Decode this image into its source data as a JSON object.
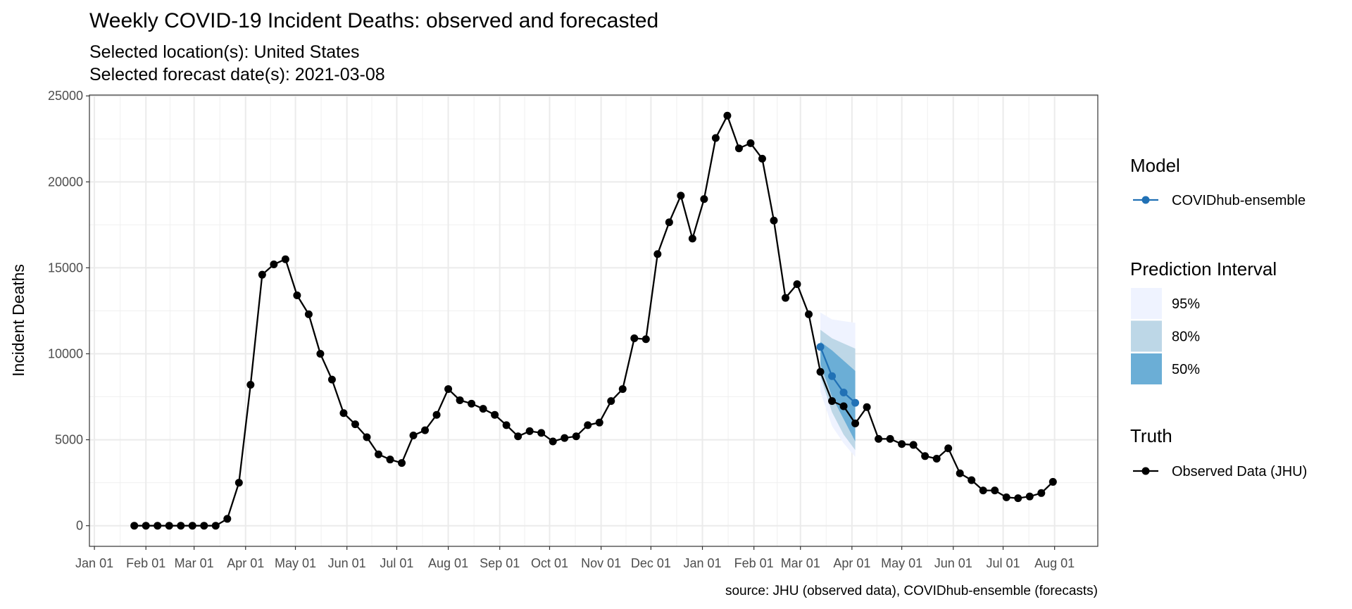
{
  "chart_data": {
    "type": "line",
    "title": "Weekly COVID-19 Incident Deaths: observed and forecasted",
    "subtitle": [
      "Selected location(s): United States",
      "Selected forecast date(s): 2021-03-08"
    ],
    "caption": "source: JHU (observed data), COVIDhub-ensemble (forecasts)",
    "y_label": "Incident Deaths",
    "xlim": [
      -3,
      604
    ],
    "ylim": [
      -1200,
      25050
    ],
    "xticks": [
      {
        "value": 0,
        "label": "Jan 01"
      },
      {
        "value": 31,
        "label": "Feb 01"
      },
      {
        "value": 60,
        "label": "Mar 01"
      },
      {
        "value": 91,
        "label": "Apr 01"
      },
      {
        "value": 121,
        "label": "May 01"
      },
      {
        "value": 152,
        "label": "Jun 01"
      },
      {
        "value": 182,
        "label": "Jul 01"
      },
      {
        "value": 213,
        "label": "Aug 01"
      },
      {
        "value": 244,
        "label": "Sep 01"
      },
      {
        "value": 274,
        "label": "Oct 01"
      },
      {
        "value": 305,
        "label": "Nov 01"
      },
      {
        "value": 335,
        "label": "Dec 01"
      },
      {
        "value": 366,
        "label": "Jan 01"
      },
      {
        "value": 397,
        "label": "Feb 01"
      },
      {
        "value": 425,
        "label": "Mar 01"
      },
      {
        "value": 456,
        "label": "Apr 01"
      },
      {
        "value": 486,
        "label": "May 01"
      },
      {
        "value": 517,
        "label": "Jun 01"
      },
      {
        "value": 547,
        "label": "Jul 01"
      },
      {
        "value": 578,
        "label": "Aug 01"
      }
    ],
    "yticks": [
      0,
      5000,
      10000,
      15000,
      20000,
      25000
    ],
    "grid": true,
    "legend_titles": {
      "model": "Model",
      "interval": "Prediction Interval",
      "truth": "Truth"
    },
    "series": [
      {
        "name": "Observed Data (JHU)",
        "color": "#000000",
        "x": [
          24,
          31,
          38,
          45,
          52,
          59,
          66,
          73,
          80,
          87,
          94,
          101,
          108,
          115,
          122,
          129,
          136,
          143,
          150,
          157,
          164,
          171,
          178,
          185,
          192,
          199,
          206,
          213,
          220,
          227,
          234,
          241,
          248,
          255,
          262,
          269,
          276,
          283,
          290,
          297,
          304,
          311,
          318,
          325,
          332,
          339,
          346,
          353,
          360,
          367,
          374,
          381,
          388,
          395,
          402,
          409,
          416,
          423,
          430,
          437,
          444,
          451,
          458,
          465,
          472,
          479,
          486,
          493,
          500,
          507,
          514,
          521,
          528,
          535,
          542,
          549,
          556,
          563,
          570,
          577
        ],
        "values": [
          0,
          0,
          0,
          0,
          0,
          0,
          0,
          0,
          400,
          2500,
          8200,
          14600,
          15200,
          15500,
          13400,
          12300,
          10000,
          8500,
          6550,
          5900,
          5150,
          4150,
          3850,
          3650,
          5250,
          5550,
          6450,
          7950,
          7300,
          7100,
          6800,
          6450,
          5850,
          5200,
          5500,
          5400,
          4900,
          5100,
          5200,
          5850,
          6000,
          7250,
          7950,
          10900,
          10850,
          15800,
          17650,
          19200,
          16700,
          19000,
          22550,
          23850,
          21950,
          22250,
          21350,
          17750,
          13250,
          14050,
          12300,
          8950,
          7250,
          6950,
          5950,
          6900,
          5050,
          5050,
          4750,
          4700,
          4050,
          3900,
          4500,
          3050,
          2650,
          2050,
          2050,
          1650,
          1600,
          1700,
          1900,
          2550
        ]
      },
      {
        "name": "COVIDhub-ensemble",
        "color": "#2171b5",
        "x": [
          437,
          444,
          451,
          458
        ],
        "values": [
          10400,
          8700,
          7750,
          7150
        ]
      }
    ],
    "intervals": [
      {
        "name": "95%",
        "color": "#eff3ff",
        "x": [
          437,
          444,
          451,
          458
        ],
        "lower": [
          7800,
          5800,
          4800,
          4000
        ],
        "upper": [
          12400,
          12000,
          11900,
          11800
        ]
      },
      {
        "name": "80%",
        "color": "#bdd7e7",
        "x": [
          437,
          444,
          451,
          458
        ],
        "lower": [
          8700,
          6600,
          5300,
          4400
        ],
        "upper": [
          11400,
          10900,
          10600,
          10300
        ]
      },
      {
        "name": "50%",
        "color": "#6baed6",
        "x": [
          437,
          444,
          451,
          458
        ],
        "lower": [
          9400,
          7500,
          6200,
          4900
        ],
        "upper": [
          10700,
          10200,
          9600,
          9000
        ]
      }
    ]
  }
}
